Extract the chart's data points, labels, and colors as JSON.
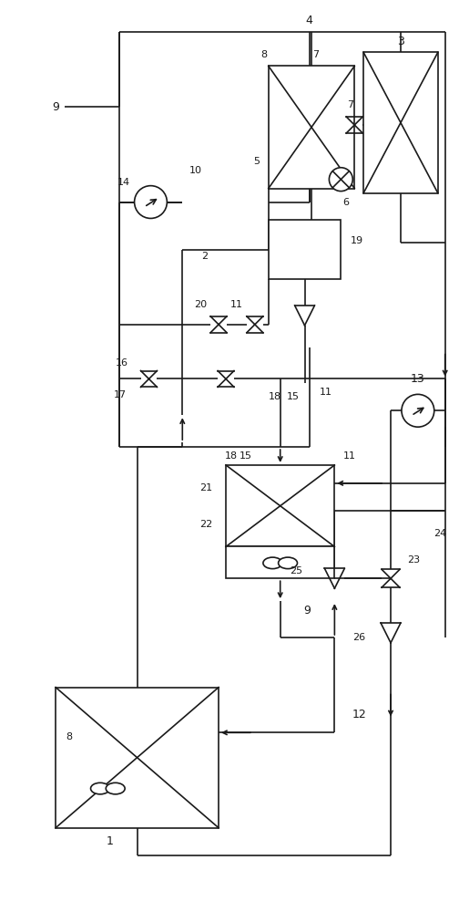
{
  "background": "#ffffff",
  "line_color": "#1a1a1a",
  "line_width": 1.2,
  "fig_width": 5.04,
  "fig_height": 10.0
}
